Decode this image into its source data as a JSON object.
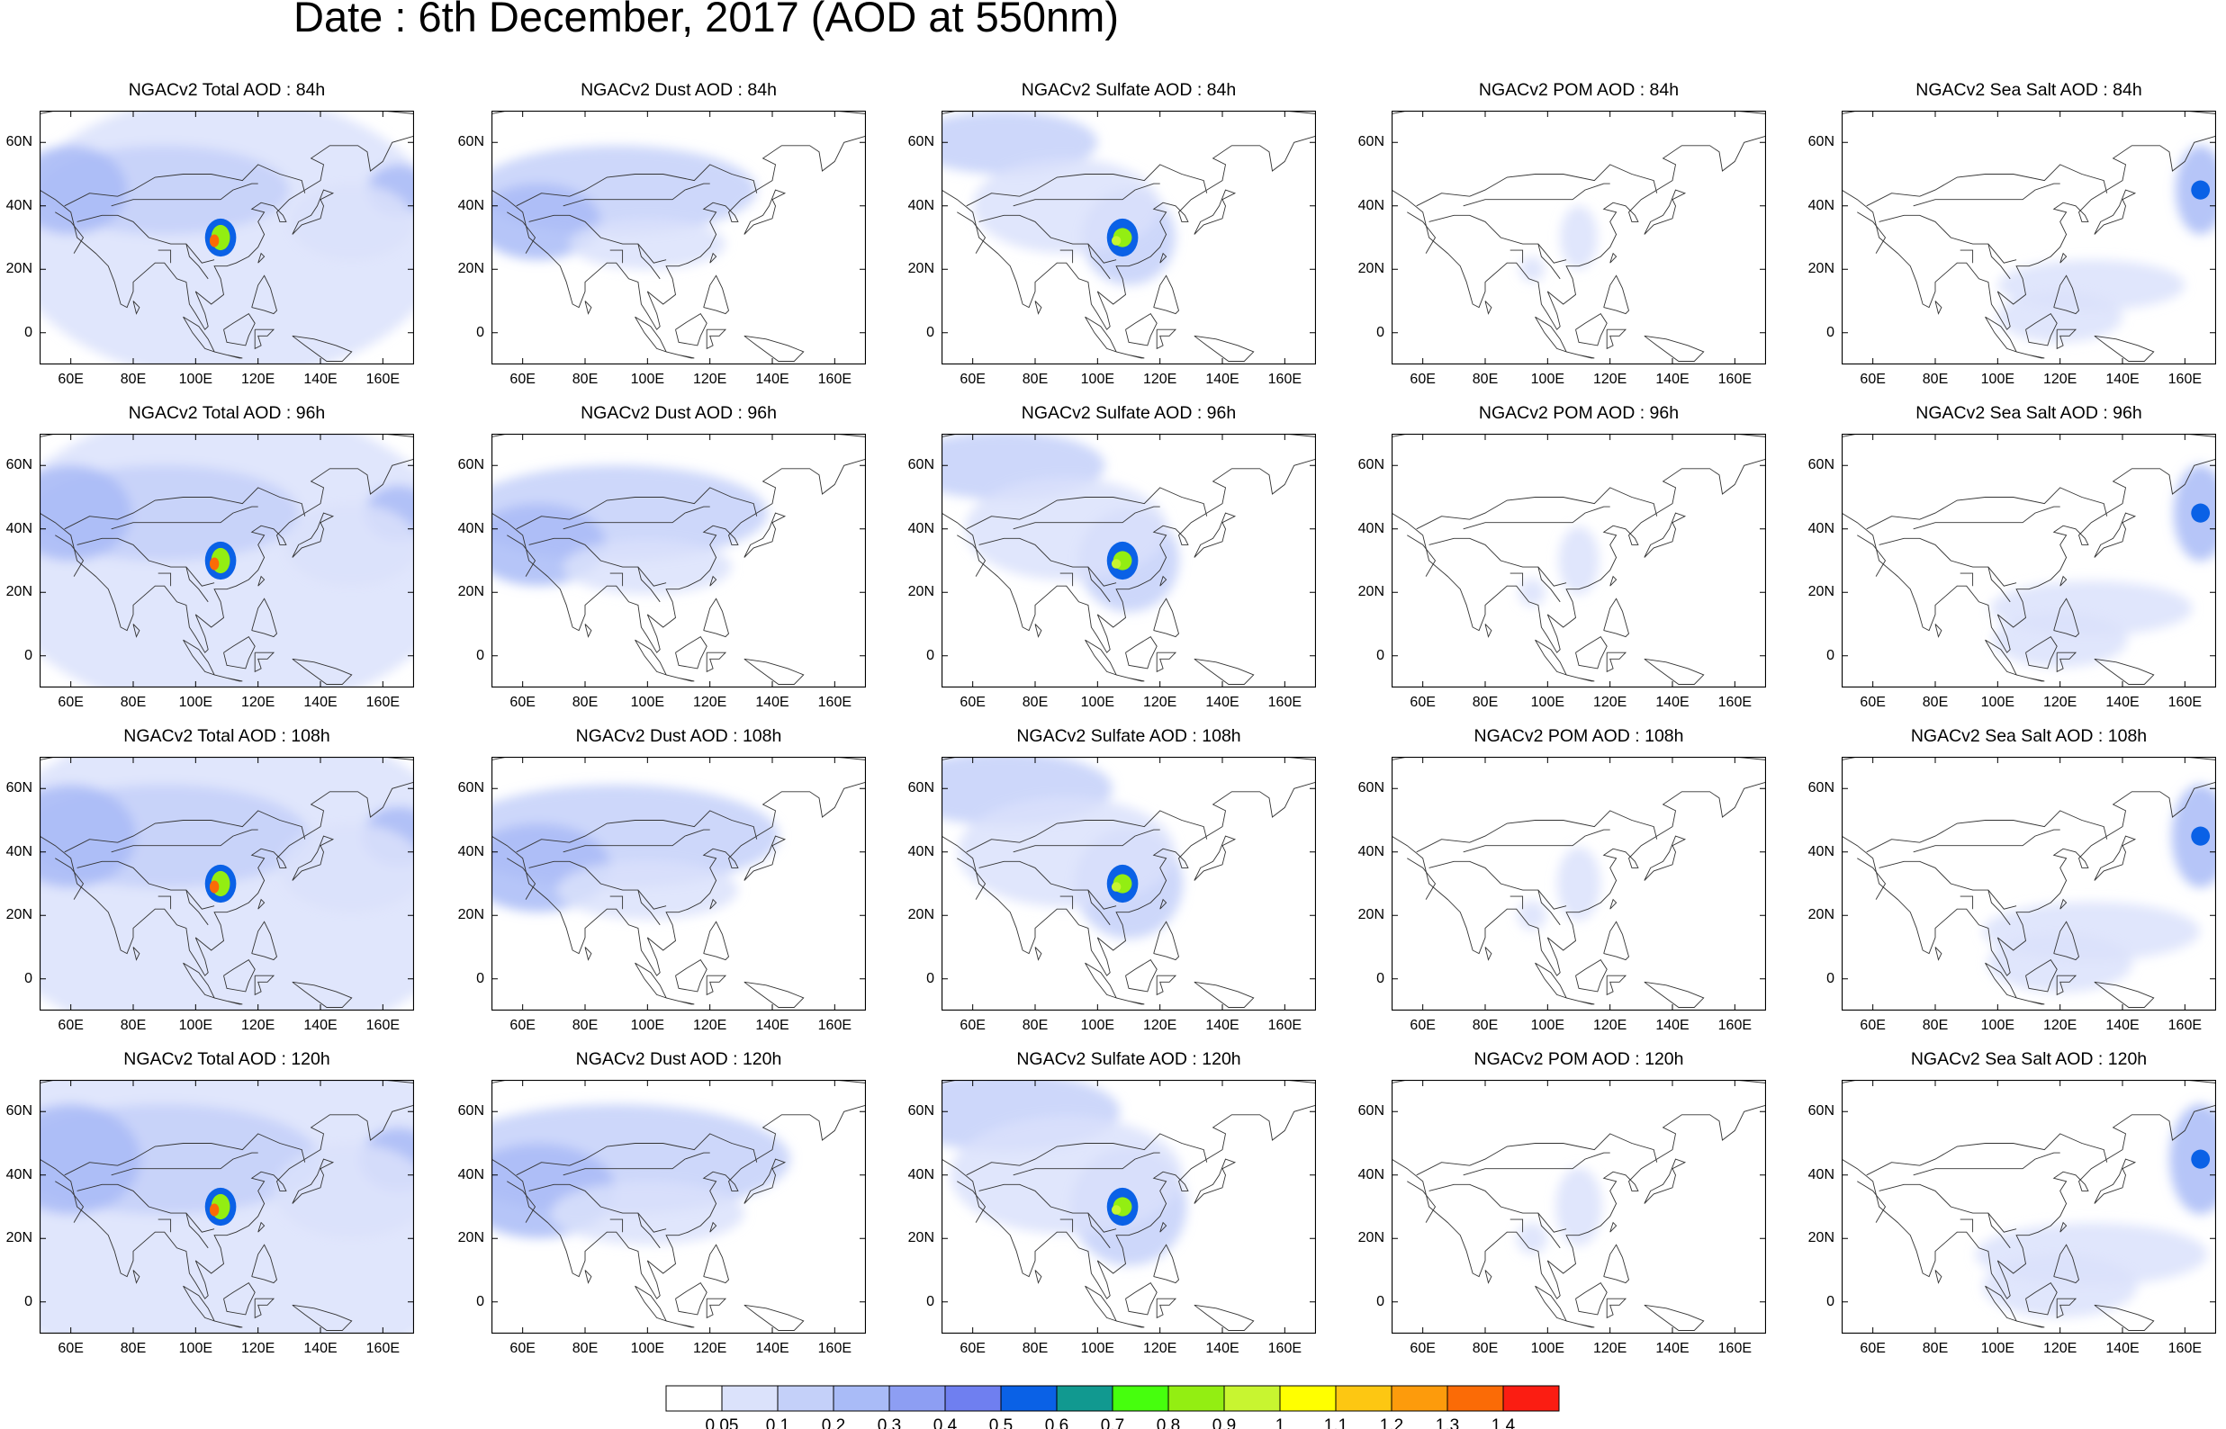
{
  "title": "Date : 6th December, 2017 (AOD at 550nm)",
  "rows": [
    "84h",
    "96h",
    "108h",
    "120h"
  ],
  "columns": [
    {
      "key": "total",
      "titles": [
        "NGACv2 Total AOD : 84h",
        "NGACv2 Total AOD : 96h",
        "NGACv2 Total AOD : 108h",
        "NGACv2 Total AOD : 120h"
      ]
    },
    {
      "key": "dust",
      "titles": [
        "NGACv2 Dust AOD : 84h",
        "NGACv2 Dust AOD : 96h",
        "NGACv2 Dust AOD : 108h",
        "NGACv2 Dust AOD : 120h"
      ]
    },
    {
      "key": "sulfate",
      "titles": [
        "NGACv2 Sulfate AOD : 84h",
        "NGACv2 Sulfate AOD : 96h",
        "NGACv2 Sulfate AOD : 108h",
        "NGACv2 Sulfate AOD : 120h"
      ]
    },
    {
      "key": "pom",
      "titles": [
        "NGACv2 POM AOD : 84h",
        "NGACv2 POM AOD : 96h",
        "NGACv2 POM AOD : 108h",
        "NGACv2 POM AOD : 120h"
      ]
    },
    {
      "key": "seasalt",
      "titles": [
        "NGACv2 Sea Salt AOD : 84h",
        "NGACv2 Sea Salt AOD : 96h",
        "NGACv2 Sea Salt AOD : 108h",
        "NGACv2 Sea Salt  AOD : 120h"
      ]
    }
  ],
  "x_ticks": [
    "60E",
    "80E",
    "100E",
    "120E",
    "140E",
    "160E"
  ],
  "y_ticks": [
    "60N",
    "40N",
    "20N",
    "0"
  ],
  "map_extent": {
    "lon": [
      50,
      170
    ],
    "lat": [
      -10,
      70
    ]
  },
  "colorbar": {
    "labels": [
      "0.05",
      "0.1",
      "0.2",
      "0.3",
      "0.4",
      "0.5",
      "0.6",
      "0.7",
      "0.8",
      "0.9",
      "1",
      "1.1",
      "1.2",
      "1.3",
      "1.4"
    ],
    "colors": [
      "#ffffff",
      "#dbe2fb",
      "#c4d0f9",
      "#a9bbf7",
      "#8d9ef3",
      "#6f7ff0",
      "#0a61e6",
      "#119990",
      "#46ff0d",
      "#93ee12",
      "#c8f530",
      "#ffff00",
      "#fdc712",
      "#fd9b0c",
      "#fb6b06",
      "#fb1d12"
    ]
  }
}
